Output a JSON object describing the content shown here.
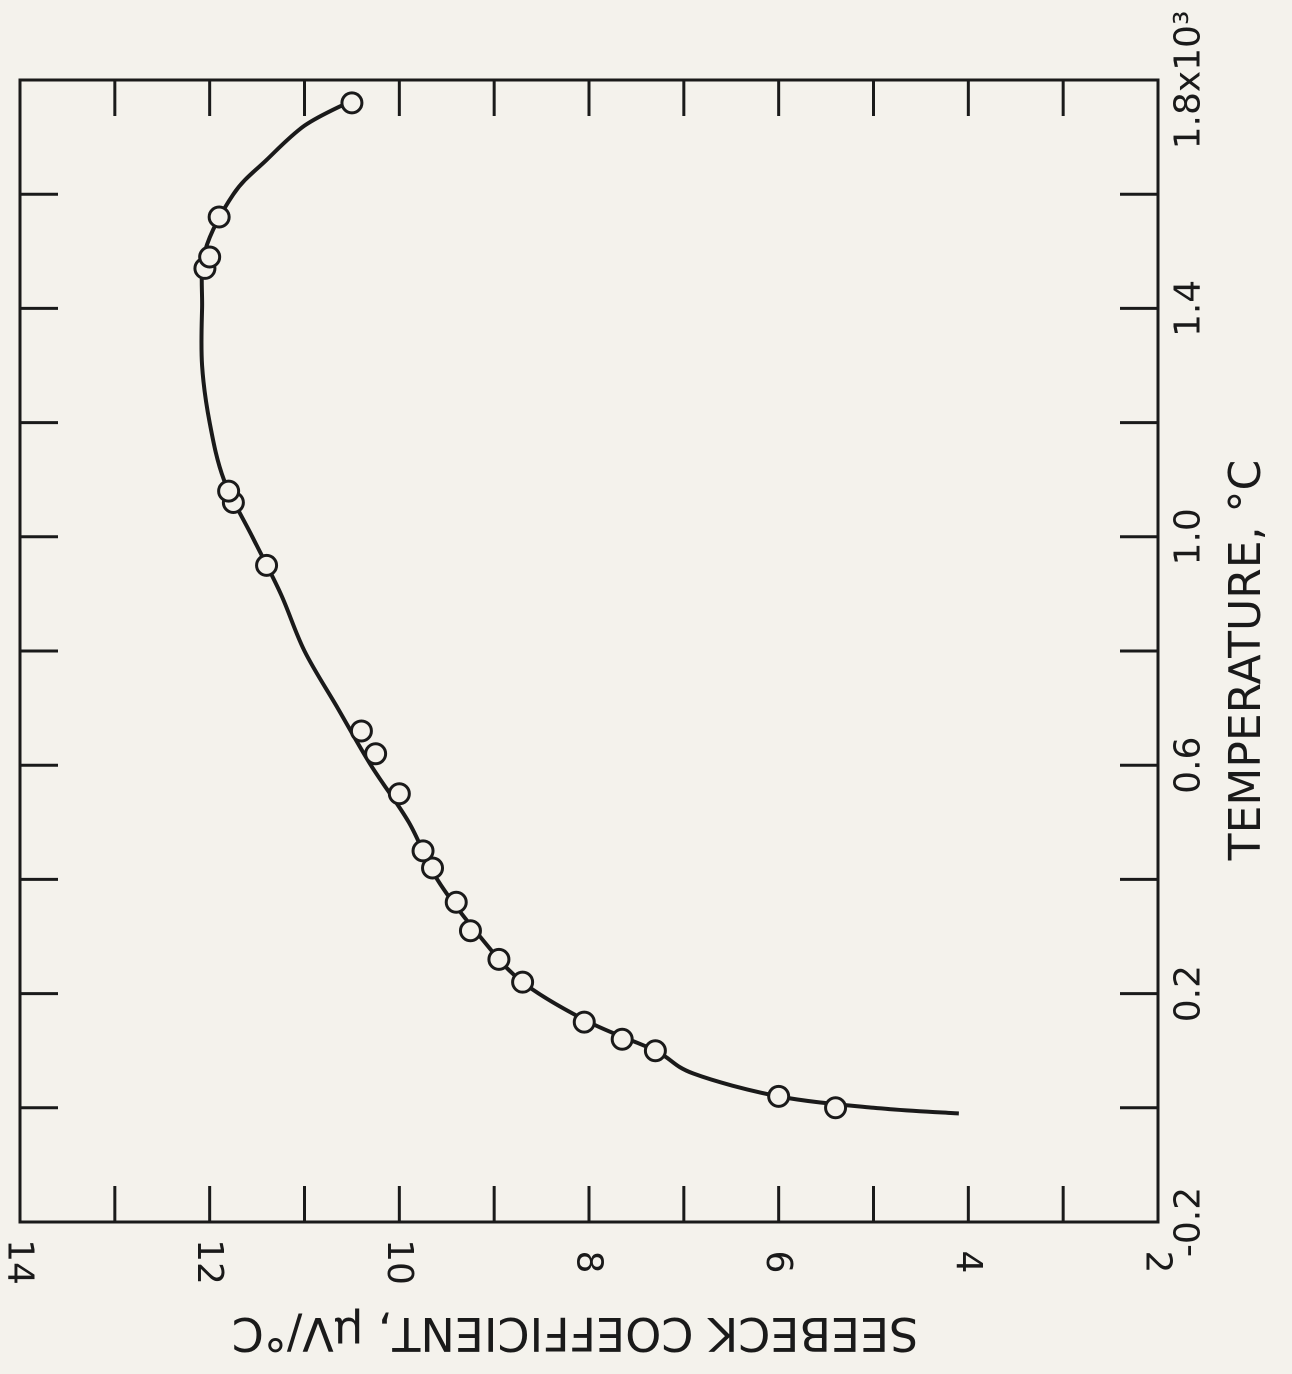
{
  "chart_data": {
    "type": "scatter",
    "title": "",
    "xlabel": "TEMPERATURE, °C",
    "ylabel": "SEEBECK COEFFICIENT, μV/°C",
    "x_unit_note": "x10³",
    "xlim": [
      -0.2,
      1.8
    ],
    "ylim": [
      2,
      14
    ],
    "x_ticks": [
      -0.2,
      0.2,
      0.6,
      1.0,
      1.4,
      1.8
    ],
    "x_tick_labels": [
      "-0.2",
      "0.2",
      "0.6",
      "1.0",
      "1.4",
      "1.8x10³"
    ],
    "y_ticks": [
      2,
      4,
      6,
      8,
      10,
      12,
      14
    ],
    "y_tick_labels": [
      "2",
      "4",
      "6",
      "8",
      "10",
      "12",
      "14"
    ],
    "grid": false,
    "series": [
      {
        "points": [
          [
            0.0,
            5.4
          ],
          [
            0.02,
            6.0
          ],
          [
            0.1,
            7.3
          ],
          [
            0.12,
            7.65
          ],
          [
            0.15,
            8.05
          ],
          [
            0.22,
            8.7
          ],
          [
            0.26,
            8.95
          ],
          [
            0.31,
            9.25
          ],
          [
            0.36,
            9.4
          ],
          [
            0.42,
            9.65
          ],
          [
            0.45,
            9.75
          ],
          [
            0.55,
            10.0
          ],
          [
            0.62,
            10.25
          ],
          [
            0.66,
            10.4
          ],
          [
            0.95,
            11.4
          ],
          [
            1.06,
            11.75
          ],
          [
            1.08,
            11.8
          ],
          [
            1.47,
            12.05
          ],
          [
            1.49,
            12.0
          ],
          [
            1.56,
            11.9
          ],
          [
            1.76,
            10.5
          ]
        ],
        "fit_curve": [
          [
            -0.01,
            4.1
          ],
          [
            0.0,
            5.0
          ],
          [
            0.02,
            6.0
          ],
          [
            0.06,
            6.9
          ],
          [
            0.1,
            7.3
          ],
          [
            0.15,
            8.0
          ],
          [
            0.22,
            8.7
          ],
          [
            0.3,
            9.15
          ],
          [
            0.4,
            9.6
          ],
          [
            0.5,
            9.9
          ],
          [
            0.6,
            10.3
          ],
          [
            0.7,
            10.65
          ],
          [
            0.8,
            11.0
          ],
          [
            0.9,
            11.25
          ],
          [
            1.0,
            11.55
          ],
          [
            1.1,
            11.85
          ],
          [
            1.2,
            12.0
          ],
          [
            1.3,
            12.08
          ],
          [
            1.4,
            12.08
          ],
          [
            1.5,
            12.05
          ],
          [
            1.6,
            11.75
          ],
          [
            1.66,
            11.4
          ],
          [
            1.72,
            11.0
          ],
          [
            1.76,
            10.55
          ]
        ]
      }
    ]
  }
}
